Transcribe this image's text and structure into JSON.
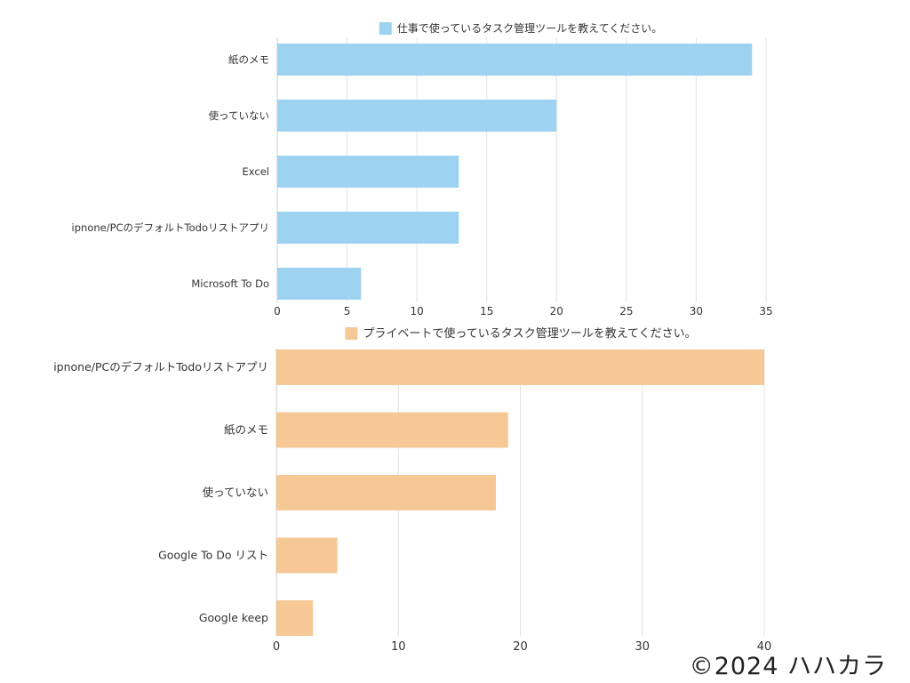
{
  "chart_data": [
    {
      "type": "bar",
      "orientation": "horizontal",
      "legend": "仕事で使っているタスク管理ツールを教えてください。",
      "legend_position": "top",
      "categories": [
        "紙のメモ",
        "使っていない",
        "Excel",
        "ipnone/PCのデフォルトTodoリストアプリ",
        "Microsoft To Do"
      ],
      "series": [
        {
          "name": "仕事で使っているタスク管理ツールを教えてください。",
          "values": [
            34,
            20,
            13,
            13,
            6
          ]
        }
      ],
      "xlim": [
        0,
        35
      ],
      "xticks": [
        "0",
        "5",
        "10",
        "15",
        "20",
        "25",
        "30",
        "35"
      ],
      "grid": "vertical",
      "color": "#9dd3f0"
    },
    {
      "type": "bar",
      "orientation": "horizontal",
      "legend": "プライベートで使っているタスク管理ツールを教えてください。",
      "legend_position": "top",
      "categories": [
        "ipnone/PCのデフォルトTodoリストアプリ",
        "紙のメモ",
        "使っていない",
        "Google To Do リスト",
        "Google keep"
      ],
      "series": [
        {
          "name": "プライベートで使っているタスク管理ツールを教えてください。",
          "values": [
            40,
            19,
            18,
            5,
            3
          ]
        }
      ],
      "xlim": [
        0,
        40
      ],
      "xticks": [
        "0",
        "10",
        "20",
        "30",
        "40"
      ],
      "grid": "vertical",
      "color": "#f5c896"
    }
  ],
  "footer": {
    "copyright": "©2024 ハハカラ"
  }
}
